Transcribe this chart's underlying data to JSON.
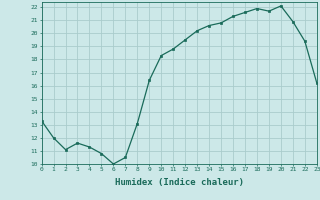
{
  "x": [
    0,
    1,
    2,
    3,
    4,
    5,
    6,
    7,
    8,
    9,
    10,
    11,
    12,
    13,
    14,
    15,
    16,
    17,
    18,
    19,
    20,
    21,
    22,
    23
  ],
  "y": [
    13.3,
    12.0,
    11.1,
    11.6,
    11.3,
    10.8,
    10.0,
    10.5,
    13.1,
    16.4,
    18.3,
    18.8,
    19.5,
    20.2,
    20.6,
    20.8,
    21.3,
    21.6,
    21.9,
    21.7,
    22.1,
    20.9,
    19.4,
    16.2
  ],
  "xlim": [
    0,
    23
  ],
  "ylim": [
    10,
    22.4
  ],
  "yticks": [
    10,
    11,
    12,
    13,
    14,
    15,
    16,
    17,
    18,
    19,
    20,
    21,
    22
  ],
  "xticks": [
    0,
    1,
    2,
    3,
    4,
    5,
    6,
    7,
    8,
    9,
    10,
    11,
    12,
    13,
    14,
    15,
    16,
    17,
    18,
    19,
    20,
    21,
    22,
    23
  ],
  "xlabel": "Humidex (Indice chaleur)",
  "line_color": "#1a6b5a",
  "marker_color": "#1a6b5a",
  "bg_color": "#cce8e8",
  "grid_color": "#aacccc",
  "axis_color": "#1a6b5a"
}
